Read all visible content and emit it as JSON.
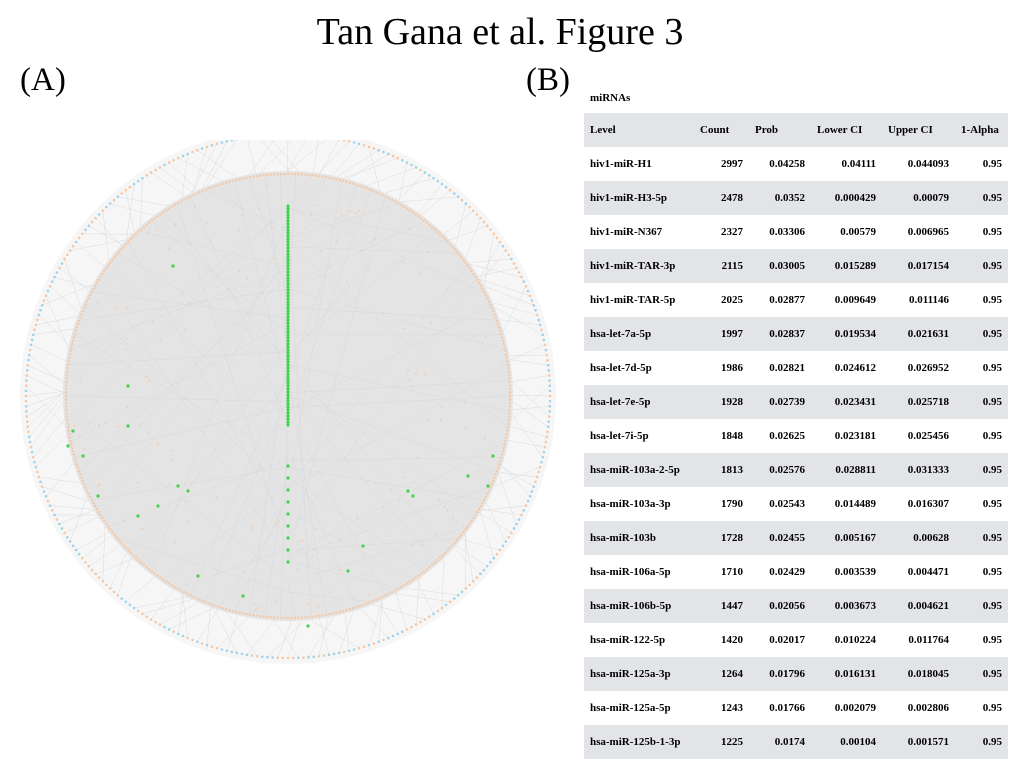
{
  "figure": {
    "title": "Tan Gana et al. Figure 3",
    "panel_a_label": "(A)",
    "panel_b_label": "(B)"
  },
  "network": {
    "colors": {
      "outer_nodes": "#9fd3ea",
      "inner_nodes": "#f6c7a3",
      "highlight_nodes": "#3fd44a",
      "edges": "#d0d0d0",
      "inner_fill": "#e4e4e4"
    }
  },
  "table": {
    "caption": "miRNAs",
    "columns": [
      "Level",
      "Count",
      "Prob",
      "Lower CI",
      "Upper CI",
      "1-Alpha"
    ],
    "rows": [
      [
        "hiv1-miR-H1",
        "2997",
        "0.04258",
        "0.04111",
        "0.044093",
        "0.95"
      ],
      [
        "hiv1-miR-H3-5p",
        "2478",
        "0.0352",
        "0.000429",
        "0.00079",
        "0.95"
      ],
      [
        "hiv1-miR-N367",
        "2327",
        "0.03306",
        "0.00579",
        "0.006965",
        "0.95"
      ],
      [
        "hiv1-miR-TAR-3p",
        "2115",
        "0.03005",
        "0.015289",
        "0.017154",
        "0.95"
      ],
      [
        "hiv1-miR-TAR-5p",
        "2025",
        "0.02877",
        "0.009649",
        "0.011146",
        "0.95"
      ],
      [
        "hsa-let-7a-5p",
        "1997",
        "0.02837",
        "0.019534",
        "0.021631",
        "0.95"
      ],
      [
        "hsa-let-7d-5p",
        "1986",
        "0.02821",
        "0.024612",
        "0.026952",
        "0.95"
      ],
      [
        "hsa-let-7e-5p",
        "1928",
        "0.02739",
        "0.023431",
        "0.025718",
        "0.95"
      ],
      [
        "hsa-let-7i-5p",
        "1848",
        "0.02625",
        "0.023181",
        "0.025456",
        "0.95"
      ],
      [
        "hsa-miR-103a-2-5p",
        "1813",
        "0.02576",
        "0.028811",
        "0.031333",
        "0.95"
      ],
      [
        "hsa-miR-103a-3p",
        "1790",
        "0.02543",
        "0.014489",
        "0.016307",
        "0.95"
      ],
      [
        "hsa-miR-103b",
        "1728",
        "0.02455",
        "0.005167",
        "0.00628",
        "0.95"
      ],
      [
        "hsa-miR-106a-5p",
        "1710",
        "0.02429",
        "0.003539",
        "0.004471",
        "0.95"
      ],
      [
        "hsa-miR-106b-5p",
        "1447",
        "0.02056",
        "0.003673",
        "0.004621",
        "0.95"
      ],
      [
        "hsa-miR-122-5p",
        "1420",
        "0.02017",
        "0.010224",
        "0.011764",
        "0.95"
      ],
      [
        "hsa-miR-125a-3p",
        "1264",
        "0.01796",
        "0.016131",
        "0.018045",
        "0.95"
      ],
      [
        "hsa-miR-125a-5p",
        "1243",
        "0.01766",
        "0.002079",
        "0.002806",
        "0.95"
      ],
      [
        "hsa-miR-125b-1-3p",
        "1225",
        "0.0174",
        "0.00104",
        "0.001571",
        "0.95"
      ]
    ]
  }
}
